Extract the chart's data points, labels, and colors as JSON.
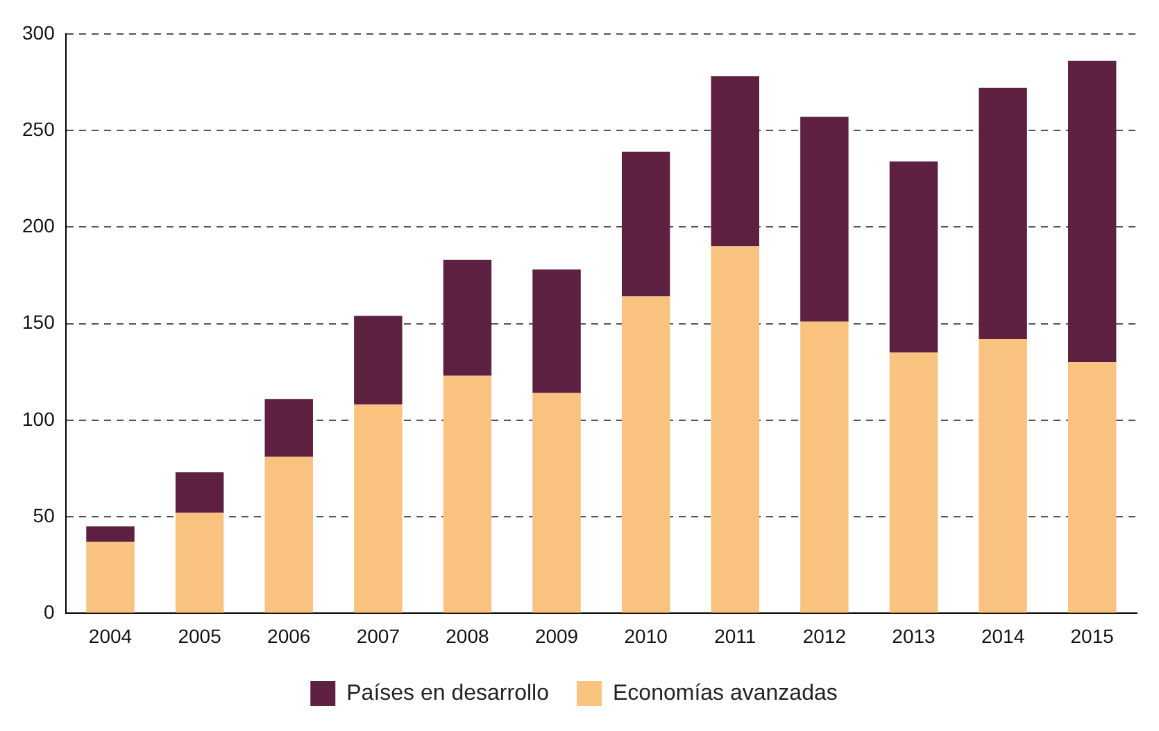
{
  "chart_data": {
    "type": "bar",
    "stacked": true,
    "categories": [
      "2004",
      "2005",
      "2006",
      "2007",
      "2008",
      "2009",
      "2010",
      "2011",
      "2012",
      "2013",
      "2014",
      "2015"
    ],
    "series": [
      {
        "name": "Economías avanzadas",
        "color": "#f9c37f",
        "values": [
          37,
          52,
          81,
          108,
          123,
          114,
          164,
          190,
          151,
          135,
          142,
          130
        ]
      },
      {
        "name": "Países en desarrollo",
        "color": "#5e2040",
        "values": [
          8,
          21,
          30,
          46,
          60,
          64,
          75,
          88,
          106,
          99,
          130,
          156
        ]
      }
    ],
    "ylim": [
      0,
      300
    ],
    "yticks": [
      0,
      50,
      100,
      150,
      200,
      250,
      300
    ],
    "grid": "y",
    "legend": "bottom"
  }
}
